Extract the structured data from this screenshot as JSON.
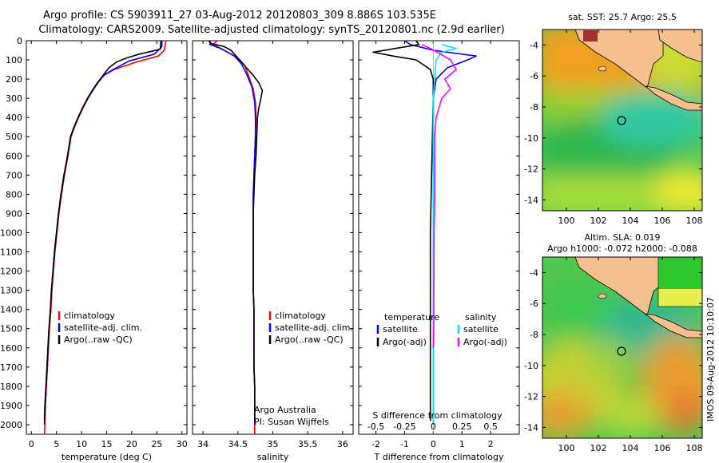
{
  "header": {
    "line1": "Argo profile: CS 5903911_27 03-Aug-2012 20120803_309 8.886S 103.535E",
    "line2": "Climatology: CARS2009. Satellite-adjusted climatology: synTS_20120801.nc (2.9d earlier)"
  },
  "side_label": "IMOS 09-Aug-2012 10:10:07",
  "colors": {
    "climatology": "#ff0000",
    "satellite": "#0000ff",
    "argo": "#000000",
    "salinity_satellite": "#00e5ff",
    "salinity_argo": "#ff00ff",
    "land": "#f6c08e"
  },
  "chart_data": [
    {
      "type": "line",
      "id": "temperature",
      "xlabel": "temperature (deg C)",
      "ylabel": "",
      "xlim": [
        -1,
        31
      ],
      "ylim": [
        2050,
        0
      ],
      "xticks": [
        0,
        5,
        10,
        15,
        20,
        25,
        30
      ],
      "yticks": [
        0,
        100,
        200,
        300,
        400,
        500,
        600,
        700,
        800,
        900,
        1000,
        1100,
        1200,
        1300,
        1400,
        1500,
        1600,
        1700,
        1800,
        1900,
        2000
      ],
      "legend": [
        "climatology",
        "satellite-adj. clim.",
        "Argo(..raw -QC)"
      ],
      "legend_position": "bottom-left",
      "series": [
        {
          "name": "climatology",
          "color": "#ff0000",
          "points": [
            [
              26.8,
              0
            ],
            [
              26.5,
              50
            ],
            [
              25.3,
              80
            ],
            [
              21,
              110
            ],
            [
              16.5,
              150
            ],
            [
              14.5,
              180
            ],
            [
              13.2,
              220
            ],
            [
              12.2,
              260
            ],
            [
              11.3,
              300
            ],
            [
              10.3,
              350
            ],
            [
              9.4,
              400
            ],
            [
              8.6,
              450
            ],
            [
              7.9,
              500
            ],
            [
              7.3,
              600
            ],
            [
              6.6,
              700
            ],
            [
              6,
              800
            ],
            [
              5.5,
              900
            ],
            [
              5.1,
              1000
            ],
            [
              4.7,
              1100
            ],
            [
              4.4,
              1200
            ],
            [
              4.1,
              1300
            ],
            [
              3.9,
              1400
            ],
            [
              3.6,
              1500
            ],
            [
              3.4,
              1600
            ],
            [
              3.2,
              1700
            ],
            [
              3.0,
              1800
            ],
            [
              2.8,
              1900
            ],
            [
              2.7,
              2000
            ],
            [
              2.6,
              2050
            ]
          ]
        },
        {
          "name": "satellite-adj. clim.",
          "color": "#0000ff",
          "points": [
            [
              25.8,
              0
            ],
            [
              25.7,
              40
            ],
            [
              24.5,
              70
            ],
            [
              19.5,
              105
            ],
            [
              16.3,
              150
            ],
            [
              14.4,
              180
            ],
            [
              13.1,
              220
            ],
            [
              12.1,
              260
            ],
            [
              11.2,
              300
            ],
            [
              10.2,
              350
            ],
            [
              9.3,
              400
            ],
            [
              8.5,
              450
            ],
            [
              7.8,
              500
            ],
            [
              7.2,
              600
            ],
            [
              6.5,
              700
            ],
            [
              5.9,
              800
            ],
            [
              5.4,
              900
            ],
            [
              5.0,
              1000
            ],
            [
              4.6,
              1100
            ],
            [
              4.3,
              1200
            ],
            [
              4.0,
              1300
            ],
            [
              3.8,
              1400
            ],
            [
              3.5,
              1500
            ],
            [
              3.3,
              1600
            ],
            [
              3.1,
              1700
            ],
            [
              2.9,
              1800
            ],
            [
              2.7,
              1900
            ],
            [
              2.6,
              2000
            ]
          ]
        },
        {
          "name": "Argo(..raw -QC)",
          "color": "#000000",
          "points": [
            [
              26,
              0
            ],
            [
              26,
              30
            ],
            [
              25.6,
              45
            ],
            [
              24,
              55
            ],
            [
              21.5,
              70
            ],
            [
              19,
              90
            ],
            [
              17,
              110
            ],
            [
              15.5,
              140
            ],
            [
              14.3,
              180
            ],
            [
              13.2,
              220
            ],
            [
              12.2,
              260
            ],
            [
              11.2,
              300
            ],
            [
              10.2,
              350
            ],
            [
              9.3,
              400
            ],
            [
              8.5,
              450
            ],
            [
              7.8,
              500
            ],
            [
              7.2,
              600
            ],
            [
              6.5,
              700
            ],
            [
              5.9,
              800
            ],
            [
              5.4,
              900
            ],
            [
              5.0,
              1000
            ],
            [
              4.6,
              1100
            ],
            [
              4.3,
              1200
            ],
            [
              4.0,
              1300
            ],
            [
              3.8,
              1400
            ],
            [
              3.5,
              1500
            ],
            [
              3.3,
              1600
            ],
            [
              3.1,
              1700
            ],
            [
              2.9,
              1800
            ],
            [
              2.7,
              1900
            ],
            [
              2.6,
              1980
            ]
          ]
        }
      ]
    },
    {
      "type": "line",
      "id": "salinity",
      "xlabel": "salinity",
      "ylabel": "",
      "xlim": [
        33.85,
        36.15
      ],
      "ylim": [
        2050,
        0
      ],
      "xticks": [
        34,
        34.5,
        35,
        35.5,
        36
      ],
      "xtick_labels": [
        "34",
        "34.5",
        "35",
        "35.5",
        "36"
      ],
      "legend": [
        "climatology",
        "satellite-adj. clim.",
        "Argo(..raw -QC)"
      ],
      "legend_position": "bottom-left",
      "annotations": [
        "Argo Australia",
        "PI: Susan Wijffels"
      ],
      "series": [
        {
          "name": "climatology",
          "color": "#ff0000",
          "points": [
            [
              34.2,
              0
            ],
            [
              34.15,
              20
            ],
            [
              34.3,
              50
            ],
            [
              34.5,
              90
            ],
            [
              34.6,
              130
            ],
            [
              34.65,
              180
            ],
            [
              34.72,
              250
            ],
            [
              34.75,
              320
            ],
            [
              34.76,
              400
            ],
            [
              34.75,
              500
            ],
            [
              34.74,
              600
            ],
            [
              34.73,
              700
            ],
            [
              34.72,
              800
            ],
            [
              34.72,
              900
            ],
            [
              34.72,
              1000
            ],
            [
              34.72,
              1100
            ],
            [
              34.72,
              1200
            ],
            [
              34.72,
              1300
            ],
            [
              34.73,
              1400
            ],
            [
              34.73,
              1500
            ],
            [
              34.73,
              1600
            ],
            [
              34.73,
              1700
            ],
            [
              34.74,
              1800
            ],
            [
              34.74,
              1900
            ],
            [
              34.74,
              2000
            ],
            [
              34.74,
              2050
            ]
          ]
        },
        {
          "name": "satellite-adj. clim.",
          "color": "#0000ff",
          "points": [
            [
              34.1,
              0
            ],
            [
              34.1,
              20
            ],
            [
              34.25,
              40
            ],
            [
              34.45,
              80
            ],
            [
              34.55,
              120
            ],
            [
              34.62,
              170
            ],
            [
              34.7,
              240
            ],
            [
              34.74,
              320
            ],
            [
              34.75,
              400
            ],
            [
              34.75,
              500
            ],
            [
              34.74,
              600
            ],
            [
              34.73,
              700
            ],
            [
              34.72,
              800
            ],
            [
              34.72,
              900
            ],
            [
              34.72,
              1000
            ],
            [
              34.72,
              1100
            ],
            [
              34.72,
              1200
            ],
            [
              34.72,
              1300
            ],
            [
              34.73,
              1400
            ],
            [
              34.73,
              1500
            ],
            [
              34.73,
              1600
            ],
            [
              34.73,
              1700
            ],
            [
              34.74,
              1800
            ],
            [
              34.74,
              1900
            ],
            [
              34.74,
              2000
            ]
          ]
        },
        {
          "name": "Argo(..raw -QC)",
          "color": "#000000",
          "points": [
            [
              34.08,
              0
            ],
            [
              34.12,
              15
            ],
            [
              34.3,
              30
            ],
            [
              34.4,
              50
            ],
            [
              34.5,
              90
            ],
            [
              34.55,
              110
            ],
            [
              34.62,
              140
            ],
            [
              34.72,
              180
            ],
            [
              34.8,
              220
            ],
            [
              34.85,
              260
            ],
            [
              34.83,
              300
            ],
            [
              34.8,
              350
            ],
            [
              34.78,
              400
            ],
            [
              34.77,
              500
            ],
            [
              34.76,
              600
            ],
            [
              34.74,
              700
            ],
            [
              34.73,
              800
            ],
            [
              34.72,
              900
            ],
            [
              34.72,
              1000
            ],
            [
              34.72,
              1100
            ],
            [
              34.72,
              1200
            ],
            [
              34.72,
              1300
            ],
            [
              34.73,
              1400
            ],
            [
              34.73,
              1500
            ],
            [
              34.73,
              1600
            ],
            [
              34.73,
              1700
            ],
            [
              34.74,
              1800
            ],
            [
              34.74,
              1900
            ],
            [
              34.74,
              1980
            ]
          ]
        }
      ]
    },
    {
      "type": "line",
      "id": "difference",
      "xlabel": "T difference from climatology",
      "xlabel_top": "S difference from climatology",
      "ylabel": "",
      "xlim": [
        -2.6,
        3
      ],
      "ylim": [
        2050,
        0
      ],
      "xticks": [
        -2,
        -1,
        0,
        1,
        2
      ],
      "xtick_labels": [
        "-2",
        "-1",
        "0",
        "1",
        "2"
      ],
      "s_tick_positions": [
        -2,
        -1,
        0,
        1,
        2
      ],
      "s_tick_labels": [
        "-0.5",
        "-0.25",
        "0",
        "0.25",
        "0.5"
      ],
      "legend_titles": [
        "temperature",
        "salinity"
      ],
      "legend": [
        "satellite",
        "Argo(-adj)",
        "satellite",
        "Argo(-adj)"
      ],
      "legend_position": "bottom",
      "series": [
        {
          "name": "satellite",
          "group": "temperature",
          "color": "#0000ff",
          "points": [
            [
              -1,
              0
            ],
            [
              -0.8,
              20
            ],
            [
              0,
              50
            ],
            [
              1.5,
              80
            ],
            [
              1.2,
              100
            ],
            [
              0.5,
              140
            ],
            [
              0.1,
              200
            ],
            [
              0,
              300
            ],
            [
              0,
              2000
            ]
          ]
        },
        {
          "name": "Argo(-adj)",
          "group": "temperature",
          "color": "#000000",
          "points": [
            [
              -0.6,
              0
            ],
            [
              -0.5,
              20
            ],
            [
              -2.1,
              60
            ],
            [
              -1.4,
              80
            ],
            [
              -0.6,
              100
            ],
            [
              -0.1,
              150
            ],
            [
              0,
              200
            ],
            [
              0,
              300
            ],
            [
              -0.1,
              1000
            ],
            [
              -0.1,
              1600
            ],
            [
              -0.1,
              1980
            ]
          ]
        },
        {
          "name": "satellite",
          "group": "salinity",
          "color": "#00e5ff",
          "points": [
            [
              0.3,
              20
            ],
            [
              0.8,
              40
            ],
            [
              0.3,
              60
            ],
            [
              0.1,
              100
            ],
            [
              0.05,
              200
            ],
            [
              0,
              300
            ],
            [
              0,
              2000
            ]
          ]
        },
        {
          "name": "Argo(-adj)",
          "group": "salinity",
          "color": "#ff00ff",
          "points": [
            [
              -0.4,
              20
            ],
            [
              -0.1,
              40
            ],
            [
              0.6,
              100
            ],
            [
              0.8,
              150
            ],
            [
              0.4,
              200
            ],
            [
              0.6,
              250
            ],
            [
              0.3,
              300
            ],
            [
              0.1,
              400
            ],
            [
              0.05,
              500
            ],
            [
              0.05,
              800
            ],
            [
              0.03,
              1000
            ],
            [
              0.02,
              1500
            ],
            [
              0,
              1600
            ]
          ]
        }
      ]
    },
    {
      "type": "heatmap",
      "id": "sst-map",
      "title": "sat. SST: 25.7 Argo: 25.5",
      "xlim": [
        98.5,
        108.5
      ],
      "ylim": [
        -14.7,
        -3
      ],
      "xticks": [
        100,
        102,
        104,
        106,
        108
      ],
      "yticks": [
        -4,
        -6,
        -8,
        -10,
        -12,
        -14
      ],
      "marker": {
        "lon": 103.535,
        "lat": -8.886
      }
    },
    {
      "type": "heatmap",
      "id": "sla-map",
      "title": "Altim. SLA: 0.019",
      "subtitle": "Argo h1000: -0.072 h2000: -0.088",
      "xlim": [
        98.5,
        108.5
      ],
      "ylim": [
        -14.7,
        -3
      ],
      "xticks": [
        100,
        102,
        104,
        106,
        108
      ],
      "yticks": [
        -4,
        -6,
        -8,
        -10,
        -12,
        -14
      ],
      "marker": {
        "lon": 103.535,
        "lat": -8.886
      }
    }
  ]
}
